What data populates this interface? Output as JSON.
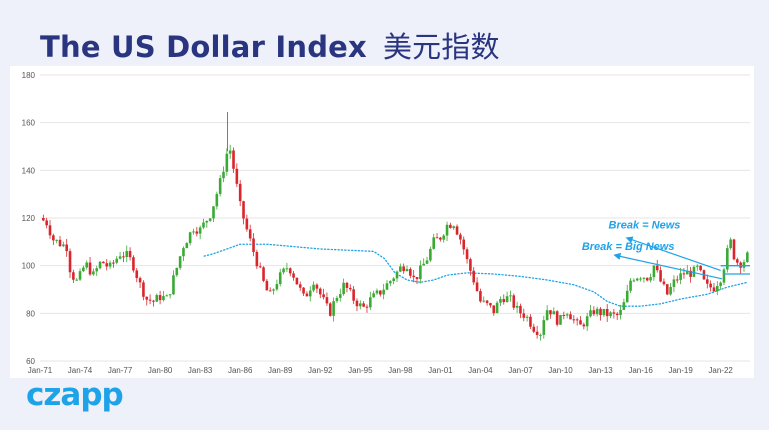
{
  "header": {
    "title_en": "The US Dollar Index",
    "title_cn": "美元指数"
  },
  "brand": {
    "logo_text": "czapp"
  },
  "colors": {
    "background": "#eef0fa",
    "title": "#2a3580",
    "up_candle": "#3aaa35",
    "down_candle": "#d9262c",
    "moving_average": "#1fa3e8",
    "annotation": "#1fa3e8",
    "grid": "#e6e6e6"
  },
  "chart_data": {
    "type": "candlestick",
    "title": "",
    "xlabel": "",
    "ylabel": "",
    "ylim": [
      60,
      180
    ],
    "yticks": [
      60,
      80,
      100,
      120,
      140,
      160,
      180
    ],
    "xlim": [
      1971.0,
      2024.2
    ],
    "xticks": [
      {
        "label": "Jan-71",
        "year": 1971
      },
      {
        "label": "Jan-74",
        "year": 1974
      },
      {
        "label": "Jan-77",
        "year": 1977
      },
      {
        "label": "Jan-80",
        "year": 1980
      },
      {
        "label": "Jan-83",
        "year": 1983
      },
      {
        "label": "Jan-86",
        "year": 1986
      },
      {
        "label": "Jan-89",
        "year": 1989
      },
      {
        "label": "Jan-92",
        "year": 1992
      },
      {
        "label": "Jan-95",
        "year": 1995
      },
      {
        "label": "Jan-98",
        "year": 1998
      },
      {
        "label": "Jan-01",
        "year": 2001
      },
      {
        "label": "Jan-04",
        "year": 2004
      },
      {
        "label": "Jan-07",
        "year": 2007
      },
      {
        "label": "Jan-10",
        "year": 2010
      },
      {
        "label": "Jan-13",
        "year": 2013
      },
      {
        "label": "Jan-16",
        "year": 2016
      },
      {
        "label": "Jan-19",
        "year": 2019
      },
      {
        "label": "Jan-22",
        "year": 2022
      }
    ],
    "grid": true,
    "price_path": [
      [
        1971.0,
        120
      ],
      [
        1971.5,
        118
      ],
      [
        1972.0,
        111
      ],
      [
        1972.6,
        109
      ],
      [
        1973.0,
        108
      ],
      [
        1973.3,
        97
      ],
      [
        1973.8,
        93
      ],
      [
        1974.4,
        101
      ],
      [
        1975.0,
        96
      ],
      [
        1975.6,
        102
      ],
      [
        1976.2,
        99
      ],
      [
        1977.0,
        105
      ],
      [
        1977.6,
        104
      ],
      [
        1978.0,
        100
      ],
      [
        1978.5,
        92
      ],
      [
        1979.0,
        86
      ],
      [
        1979.5,
        85
      ],
      [
        1980.0,
        87
      ],
      [
        1980.6,
        86
      ],
      [
        1980.8,
        91
      ],
      [
        1981.3,
        100
      ],
      [
        1981.7,
        108
      ],
      [
        1982.5,
        116
      ],
      [
        1983.0,
        115
      ],
      [
        1983.8,
        122
      ],
      [
        1984.5,
        135
      ],
      [
        1985.0,
        147
      ],
      [
        1985.2,
        150
      ],
      [
        1985.6,
        138
      ],
      [
        1986.0,
        125
      ],
      [
        1986.6,
        113
      ],
      [
        1987.0,
        106
      ],
      [
        1987.8,
        92
      ],
      [
        1988.2,
        87
      ],
      [
        1988.8,
        94
      ],
      [
        1989.6,
        100
      ],
      [
        1990.0,
        96
      ],
      [
        1990.8,
        86
      ],
      [
        1991.5,
        94
      ],
      [
        1992.0,
        88
      ],
      [
        1992.7,
        80
      ],
      [
        1993.2,
        87
      ],
      [
        1993.8,
        92
      ],
      [
        1994.5,
        86
      ],
      [
        1995.2,
        82
      ],
      [
        1995.8,
        86
      ],
      [
        1996.5,
        89
      ],
      [
        1997.3,
        94
      ],
      [
        1998.0,
        99
      ],
      [
        1998.6,
        101
      ],
      [
        1998.9,
        94
      ],
      [
        1999.3,
        96
      ],
      [
        2000.0,
        103
      ],
      [
        2000.5,
        110
      ],
      [
        2001.0,
        112
      ],
      [
        2001.5,
        117
      ],
      [
        2002.0,
        118
      ],
      [
        2002.6,
        110
      ],
      [
        2003.0,
        102
      ],
      [
        2003.5,
        94
      ],
      [
        2004.0,
        85
      ],
      [
        2004.6,
        83
      ],
      [
        2005.0,
        81
      ],
      [
        2005.6,
        87
      ],
      [
        2006.2,
        86
      ],
      [
        2006.8,
        81
      ],
      [
        2007.4,
        79
      ],
      [
        2008.0,
        74
      ],
      [
        2008.5,
        72
      ],
      [
        2008.9,
        82
      ],
      [
        2009.3,
        81
      ],
      [
        2009.9,
        76
      ],
      [
        2010.4,
        82
      ],
      [
        2010.9,
        78
      ],
      [
        2011.4,
        74
      ],
      [
        2011.9,
        77
      ],
      [
        2012.5,
        81
      ],
      [
        2013.2,
        80
      ],
      [
        2014.0,
        79
      ],
      [
        2014.4,
        79
      ],
      [
        2014.9,
        86
      ],
      [
        2015.3,
        95
      ],
      [
        2016.0,
        96
      ],
      [
        2016.6,
        95
      ],
      [
        2017.0,
        100
      ],
      [
        2017.6,
        92
      ],
      [
        2018.0,
        88
      ],
      [
        2018.6,
        94
      ],
      [
        2019.3,
        97
      ],
      [
        2019.9,
        97
      ],
      [
        2020.3,
        99
      ],
      [
        2020.9,
        91
      ],
      [
        2021.5,
        91
      ],
      [
        2022.0,
        95
      ],
      [
        2022.4,
        103
      ],
      [
        2022.7,
        111
      ],
      [
        2023.1,
        102
      ],
      [
        2023.6,
        101
      ],
      [
        2024.0,
        104
      ]
    ],
    "moving_average": [
      [
        1983.3,
        104
      ],
      [
        1984.0,
        105
      ],
      [
        1985.0,
        107
      ],
      [
        1986.0,
        109
      ],
      [
        1988.0,
        109
      ],
      [
        1990.0,
        108
      ],
      [
        1992.0,
        107
      ],
      [
        1994.0,
        106.5
      ],
      [
        1996.0,
        106
      ],
      [
        1996.8,
        103
      ],
      [
        1997.6,
        97
      ],
      [
        1998.5,
        94
      ],
      [
        1999.5,
        93
      ],
      [
        2000.5,
        94
      ],
      [
        2001.5,
        96
      ],
      [
        2003.0,
        97
      ],
      [
        2005.0,
        96.5
      ],
      [
        2007.0,
        95.5
      ],
      [
        2009.0,
        94
      ],
      [
        2010.0,
        93
      ],
      [
        2011.0,
        92
      ],
      [
        2012.5,
        89
      ],
      [
        2013.5,
        85
      ],
      [
        2014.5,
        83
      ],
      [
        2016.0,
        83
      ],
      [
        2017.5,
        84
      ],
      [
        2019.0,
        86
      ],
      [
        2021.0,
        88
      ],
      [
        2022.5,
        91
      ],
      [
        2024.0,
        93
      ]
    ],
    "annotations": [
      {
        "text": "Break = News",
        "label_at": [
          2013.6,
          115.5
        ],
        "arrow_from": [
          2015.3,
          111
        ],
        "arrow_to": [
          2022.0,
          98
        ]
      },
      {
        "text": "Break = Big News",
        "label_at": [
          2011.6,
          106.5
        ],
        "arrow_from": [
          2014.4,
          104
        ],
        "arrow_to": [
          2022.1,
          94.5
        ]
      }
    ],
    "break_levels": [
      {
        "value": 100,
        "from": 2022.0,
        "to": 2024.2
      },
      {
        "value": 96.5,
        "from": 2022.2,
        "to": 2024.2
      }
    ]
  }
}
